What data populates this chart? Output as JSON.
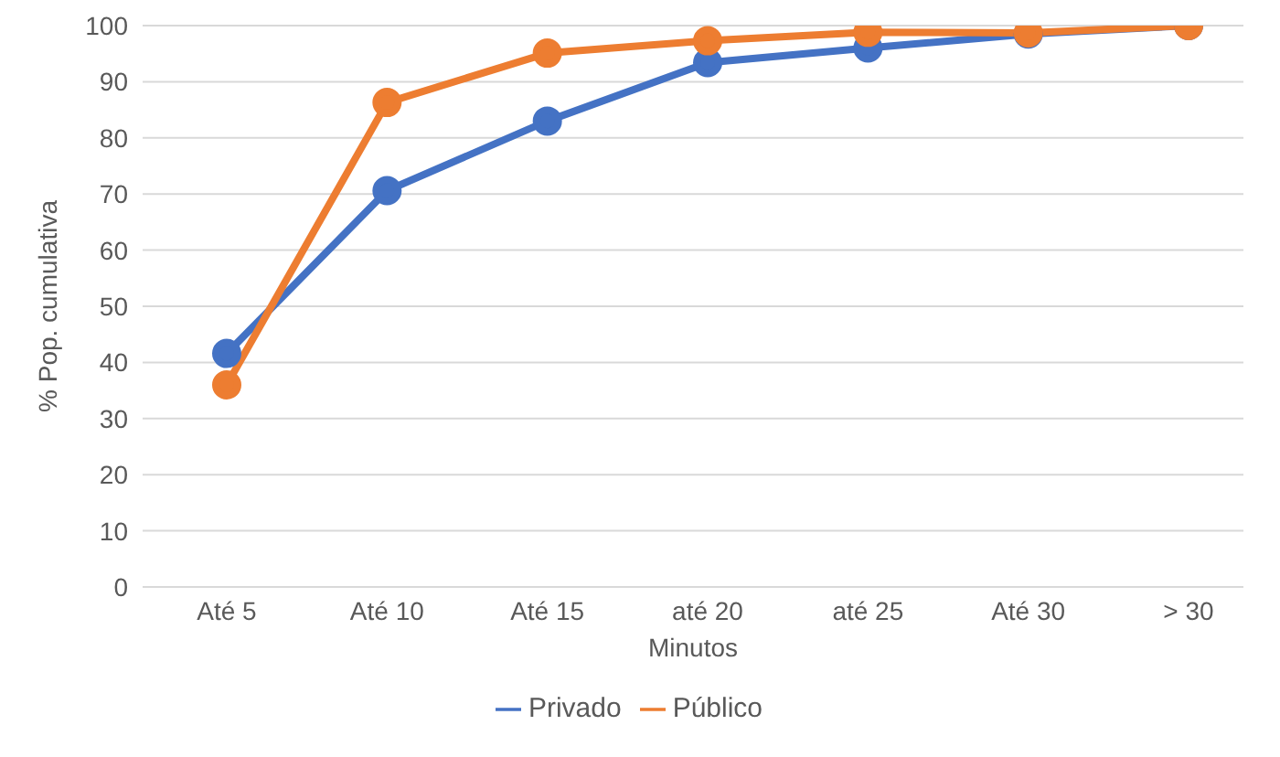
{
  "chart_data": {
    "type": "line",
    "xlabel": "Minutos",
    "ylabel": "% Pop. cumulativa",
    "categories": [
      "Até 5",
      "Até 10",
      "Até 15",
      "até 20",
      "até 25",
      "Até 30",
      "> 30"
    ],
    "series": [
      {
        "name": "Privado",
        "color": "#4472c4",
        "values": [
          41.6,
          70.6,
          83,
          93.4,
          96,
          98.5,
          100
        ]
      },
      {
        "name": "Público",
        "color": "#ed7d31",
        "values": [
          36,
          86.3,
          95.1,
          97.3,
          98.8,
          98.7,
          100
        ]
      }
    ],
    "ylim": [
      0,
      100
    ],
    "yticks": [
      0,
      10,
      20,
      30,
      40,
      50,
      60,
      70,
      80,
      90,
      100
    ],
    "grid": "y",
    "legend": "bottom",
    "marker": "circle"
  }
}
